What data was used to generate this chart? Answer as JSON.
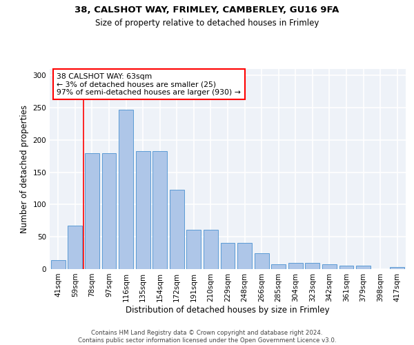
{
  "title1": "38, CALSHOT WAY, FRIMLEY, CAMBERLEY, GU16 9FA",
  "title2": "Size of property relative to detached houses in Frimley",
  "xlabel": "Distribution of detached houses by size in Frimley",
  "ylabel": "Number of detached properties",
  "categories": [
    "41sqm",
    "59sqm",
    "78sqm",
    "97sqm",
    "116sqm",
    "135sqm",
    "154sqm",
    "172sqm",
    "191sqm",
    "210sqm",
    "229sqm",
    "248sqm",
    "266sqm",
    "285sqm",
    "304sqm",
    "323sqm",
    "342sqm",
    "361sqm",
    "379sqm",
    "398sqm",
    "417sqm"
  ],
  "values": [
    14,
    67,
    180,
    180,
    247,
    183,
    183,
    123,
    61,
    61,
    41,
    41,
    25,
    8,
    10,
    10,
    7,
    5,
    5,
    0,
    3
  ],
  "bar_color": "#aec6e8",
  "bar_edge_color": "#5b9bd5",
  "vline_x": 1.5,
  "annotation_text_line1": "38 CALSHOT WAY: 63sqm",
  "annotation_text_line2": "← 3% of detached houses are smaller (25)",
  "annotation_text_line3": "97% of semi-detached houses are larger (930) →",
  "annotation_box_color": "white",
  "annotation_border_color": "red",
  "vline_color": "red",
  "ylim": [
    0,
    310
  ],
  "yticks": [
    0,
    50,
    100,
    150,
    200,
    250,
    300
  ],
  "footer1": "Contains HM Land Registry data © Crown copyright and database right 2024.",
  "footer2": "Contains public sector information licensed under the Open Government Licence v3.0.",
  "bg_color": "#eef2f8"
}
